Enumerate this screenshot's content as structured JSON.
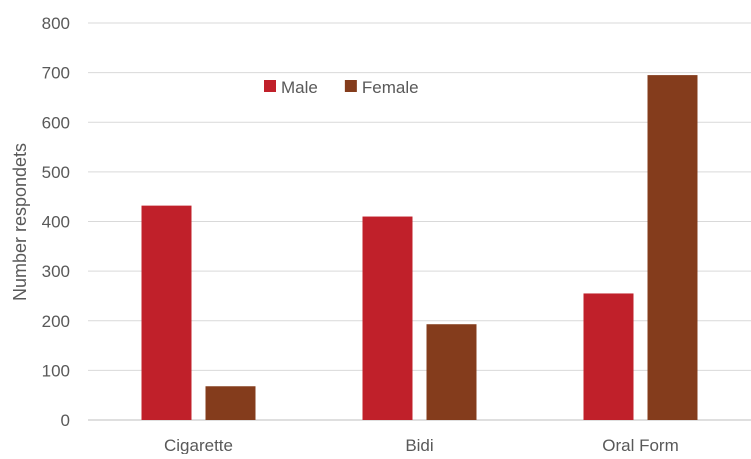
{
  "chart_data": {
    "type": "bar",
    "title": "",
    "xlabel": "",
    "ylabel": "Number respondets",
    "ylim": [
      0,
      800
    ],
    "yticks": [
      0,
      100,
      200,
      300,
      400,
      500,
      600,
      700,
      800
    ],
    "grid": true,
    "legend_position": "top-center",
    "categories": [
      "Cigarette",
      "Bidi",
      "Oral Form"
    ],
    "series": [
      {
        "name": "Male",
        "color": "#c0202a",
        "values": [
          432,
          410,
          255
        ]
      },
      {
        "name": "Female",
        "color": "#843c1c",
        "values": [
          68,
          193,
          695
        ]
      }
    ]
  }
}
